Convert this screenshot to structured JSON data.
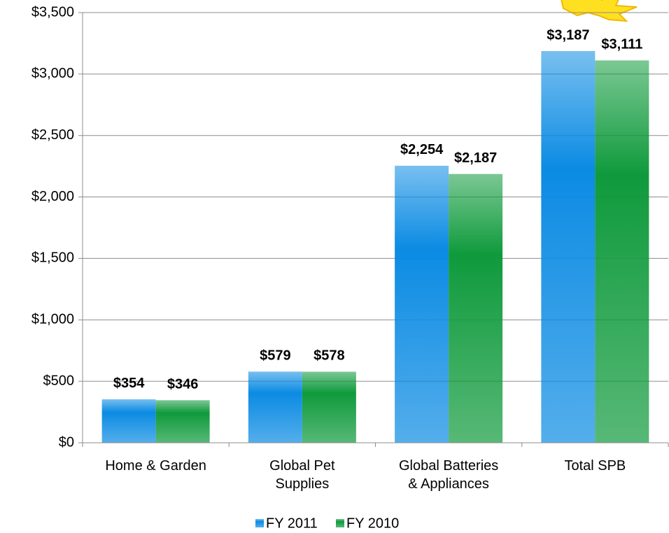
{
  "chart_data": {
    "type": "bar",
    "categories": [
      "Home & Garden",
      "Global Pet Supplies",
      "Global Batteries & Appliances",
      "Total SPB"
    ],
    "series": [
      {
        "name": "FY 2011",
        "color": "#0b8be3",
        "values": [
          354,
          579,
          2254,
          3187
        ],
        "value_labels": [
          "$354",
          "$579",
          "$2,254",
          "$3,187"
        ]
      },
      {
        "name": "FY 2010",
        "color": "#0f9a3c",
        "values": [
          346,
          578,
          2187,
          3111
        ],
        "value_labels": [
          "$346",
          "$578",
          "$2,187",
          "$3,111"
        ]
      }
    ],
    "ylim": [
      0,
      3500
    ],
    "yticks": [
      {
        "value": 0,
        "label": "$0"
      },
      {
        "value": 500,
        "label": "$500"
      },
      {
        "value": 1000,
        "label": "$1,000"
      },
      {
        "value": 1500,
        "label": "$1,500"
      },
      {
        "value": 2000,
        "label": "$2,000"
      },
      {
        "value": 2500,
        "label": "$2,500"
      },
      {
        "value": 3000,
        "label": "$3,000"
      },
      {
        "value": 3500,
        "label": "$3,500"
      }
    ],
    "grid": true,
    "legend": "bottom"
  }
}
